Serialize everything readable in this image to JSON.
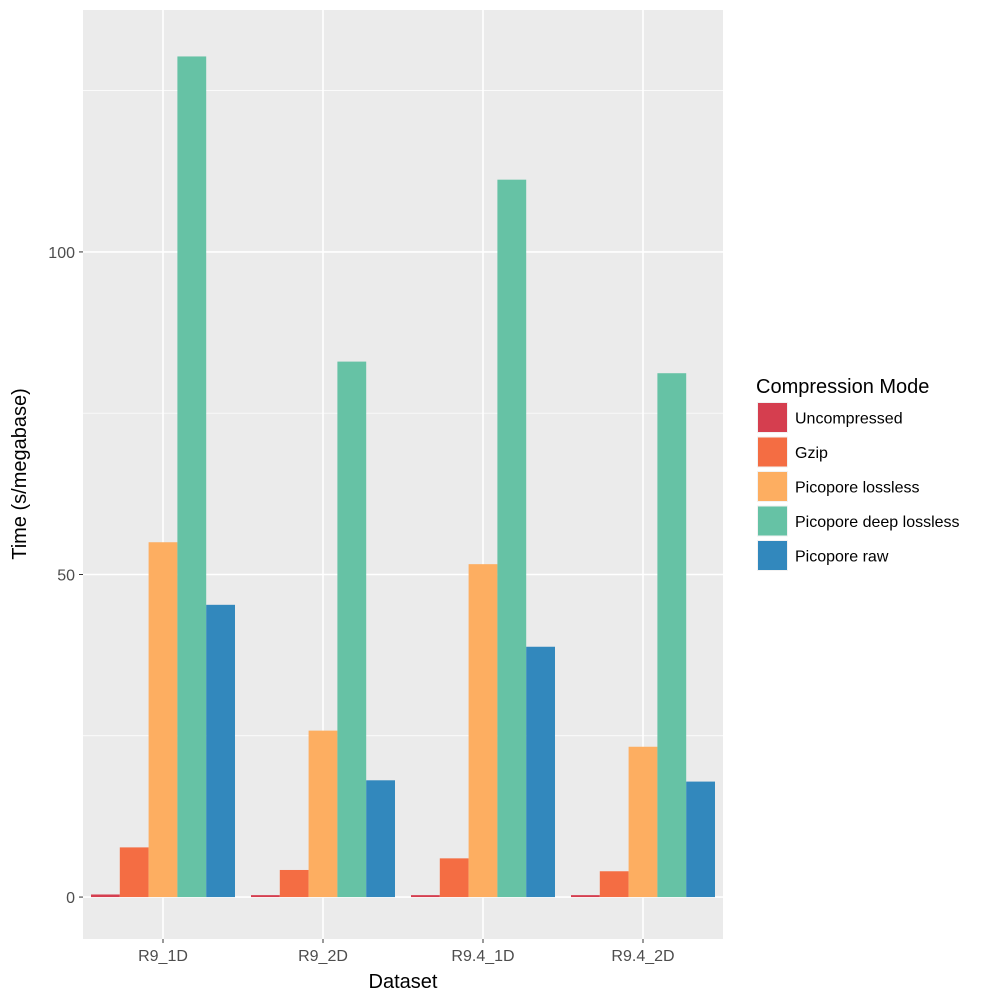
{
  "chart_data": {
    "type": "bar",
    "title": "",
    "xlabel": "Dataset",
    "ylabel": "Time (s/megabase)",
    "categories": [
      "R9_1D",
      "R9_2D",
      "R9.4_1D",
      "R9.4_2D"
    ],
    "ylim": [
      -6.5,
      137.5
    ],
    "yticks": [
      0,
      50,
      100
    ],
    "grid": true,
    "legend": {
      "title": "Compression Mode",
      "position": "right"
    },
    "series": [
      {
        "name": "Uncompressed",
        "color": "#d53e4f",
        "values": [
          0.4,
          0.3,
          0.3,
          0.3
        ]
      },
      {
        "name": "Gzip",
        "color": "#f46d43",
        "values": [
          7.7,
          4.2,
          6.0,
          4.0
        ]
      },
      {
        "name": "Picopore lossless",
        "color": "#fdae61",
        "values": [
          55.0,
          25.8,
          51.6,
          23.3
        ]
      },
      {
        "name": "Picopore deep lossless",
        "color": "#66c2a5",
        "values": [
          130.3,
          83.0,
          111.2,
          81.2
        ]
      },
      {
        "name": "Picopore raw",
        "color": "#3288bd",
        "values": [
          45.3,
          18.1,
          38.8,
          17.9
        ]
      }
    ]
  }
}
